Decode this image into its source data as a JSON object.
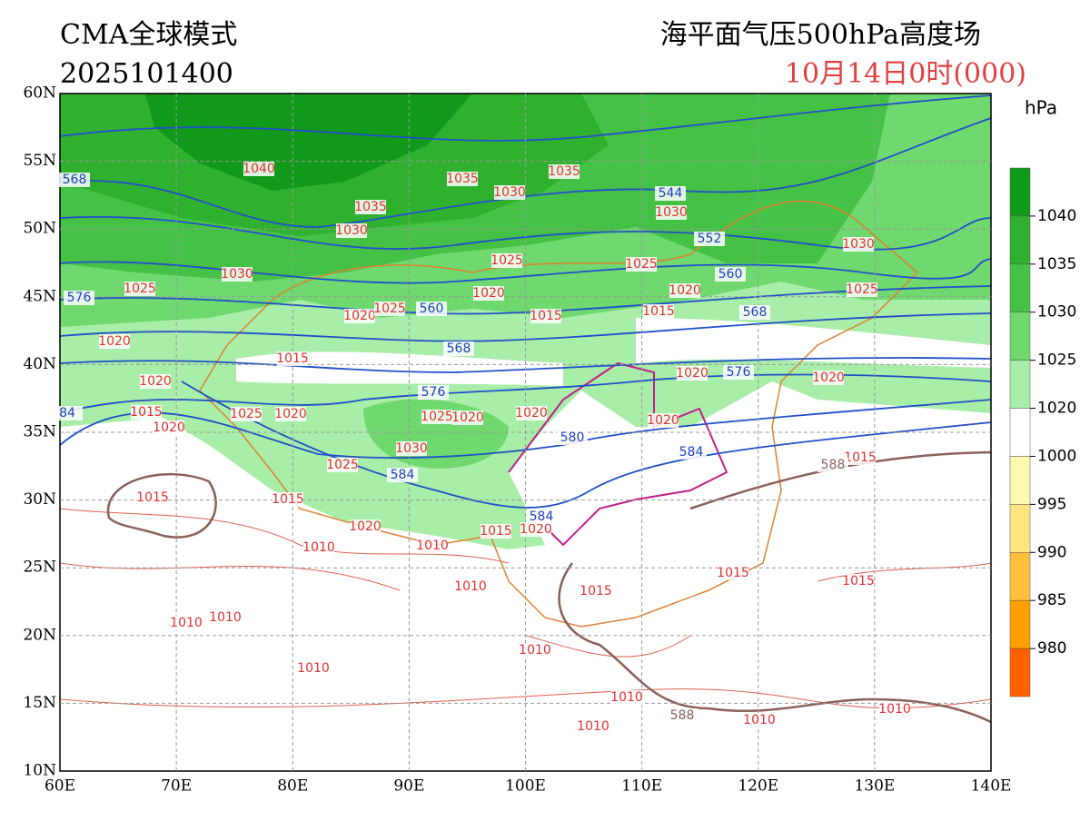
{
  "header": {
    "model": "CMA全球模式",
    "run": "2025101400",
    "product": "海平面气压500hPa高度场",
    "valid": "10月14日0时(000)"
  },
  "map": {
    "lat_ticks": [
      "60N",
      "55N",
      "50N",
      "45N",
      "40N",
      "35N",
      "30N",
      "25N",
      "20N",
      "15N",
      "10N"
    ],
    "lon_ticks": [
      "60E",
      "70E",
      "80E",
      "90E",
      "100E",
      "110E",
      "120E",
      "130E",
      "140E"
    ]
  },
  "colorbar": {
    "unit": "hPa",
    "levels": [
      1040,
      1035,
      1030,
      1025,
      1020,
      1000,
      995,
      990,
      985,
      980
    ],
    "colors": [
      "#129a1a",
      "#2fb02f",
      "#45c245",
      "#6fd86f",
      "#a8eea8",
      "#ffffff",
      "#fff8b0",
      "#ffe680",
      "#ffc040",
      "#ff9f00",
      "#ff6000"
    ]
  },
  "pressure_labels": [
    "1040",
    "1035",
    "1030",
    "1035",
    "1035",
    "1030",
    "1030",
    "1030",
    "1025",
    "1025",
    "1025",
    "1030",
    "1025",
    "1020",
    "1020",
    "1020",
    "1025",
    "1015",
    "1015",
    "1020",
    "1015",
    "1020",
    "1020",
    "1020",
    "1015",
    "1025",
    "1020",
    "1025",
    "1020",
    "1020",
    "1020",
    "1020",
    "1030",
    "1025",
    "1015",
    "1015",
    "1015",
    "1020",
    "1015",
    "1020",
    "1010",
    "1010",
    "1010",
    "1015",
    "1015",
    "1015",
    "1010",
    "1010",
    "1010",
    "1010",
    "1010",
    "1010",
    "1010",
    "1010"
  ],
  "height_labels": [
    "568",
    "544",
    "552",
    "560",
    "568",
    "576",
    "560",
    "568",
    "576",
    "576",
    "580",
    "584",
    "584",
    "584",
    "84"
  ],
  "ridge_labels": [
    "588",
    "588"
  ]
}
